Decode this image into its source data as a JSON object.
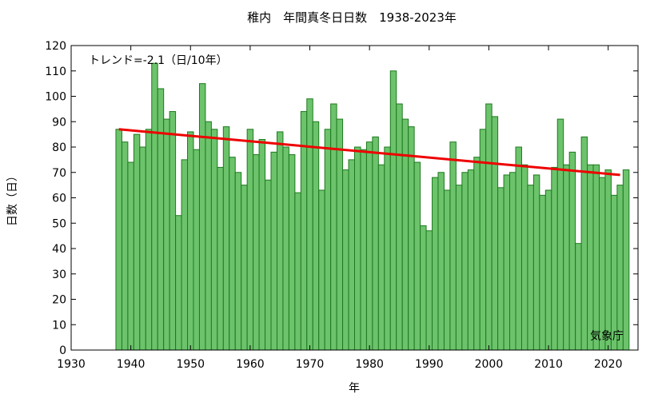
{
  "chart_data": {
    "type": "bar",
    "title": "稚内　年間真冬日日数　1938-2023年",
    "xlabel": "年",
    "ylabel": "日数（日）",
    "annotation": "トレンド=-2.1（日/10年）",
    "source": "気象庁",
    "xlim": [
      1930,
      2025
    ],
    "ylim": [
      0,
      120
    ],
    "x_ticks": [
      1930,
      1940,
      1950,
      1960,
      1970,
      1980,
      1990,
      2000,
      2010,
      2020
    ],
    "y_ticks": [
      0,
      10,
      20,
      30,
      40,
      50,
      60,
      70,
      80,
      90,
      100,
      110,
      120
    ],
    "grid": false,
    "colors": {
      "bar_fill": "#6cc36c",
      "bar_stroke": "#1e7a1e",
      "trend": "#ee0000"
    },
    "x": [
      1938,
      1939,
      1940,
      1941,
      1942,
      1943,
      1944,
      1945,
      1946,
      1947,
      1948,
      1949,
      1950,
      1951,
      1952,
      1953,
      1954,
      1955,
      1956,
      1957,
      1958,
      1959,
      1960,
      1961,
      1962,
      1963,
      1964,
      1965,
      1966,
      1967,
      1968,
      1969,
      1970,
      1971,
      1972,
      1973,
      1974,
      1975,
      1976,
      1977,
      1978,
      1979,
      1980,
      1981,
      1982,
      1983,
      1984,
      1985,
      1986,
      1987,
      1988,
      1989,
      1990,
      1991,
      1992,
      1993,
      1994,
      1995,
      1996,
      1997,
      1998,
      1999,
      2000,
      2001,
      2002,
      2003,
      2004,
      2005,
      2006,
      2007,
      2008,
      2009,
      2010,
      2011,
      2012,
      2013,
      2014,
      2015,
      2016,
      2017,
      2018,
      2019,
      2020,
      2021,
      2022,
      2023
    ],
    "values": [
      87,
      82,
      74,
      85,
      80,
      87,
      113,
      103,
      91,
      94,
      53,
      75,
      86,
      79,
      105,
      90,
      87,
      72,
      88,
      76,
      70,
      65,
      87,
      77,
      83,
      67,
      78,
      86,
      80,
      77,
      62,
      94,
      99,
      90,
      63,
      87,
      97,
      91,
      71,
      75,
      80,
      79,
      82,
      84,
      73,
      80,
      110,
      97,
      91,
      88,
      74,
      49,
      47,
      68,
      70,
      63,
      82,
      65,
      70,
      71,
      76,
      87,
      97,
      92,
      64,
      69,
      70,
      80,
      73,
      65,
      69,
      61,
      63,
      72,
      91,
      73,
      78,
      42,
      84,
      73,
      73,
      68,
      71,
      61,
      65,
      71
    ],
    "trend": {
      "x": [
        1938,
        2022
      ],
      "y": [
        87,
        69
      ]
    }
  }
}
